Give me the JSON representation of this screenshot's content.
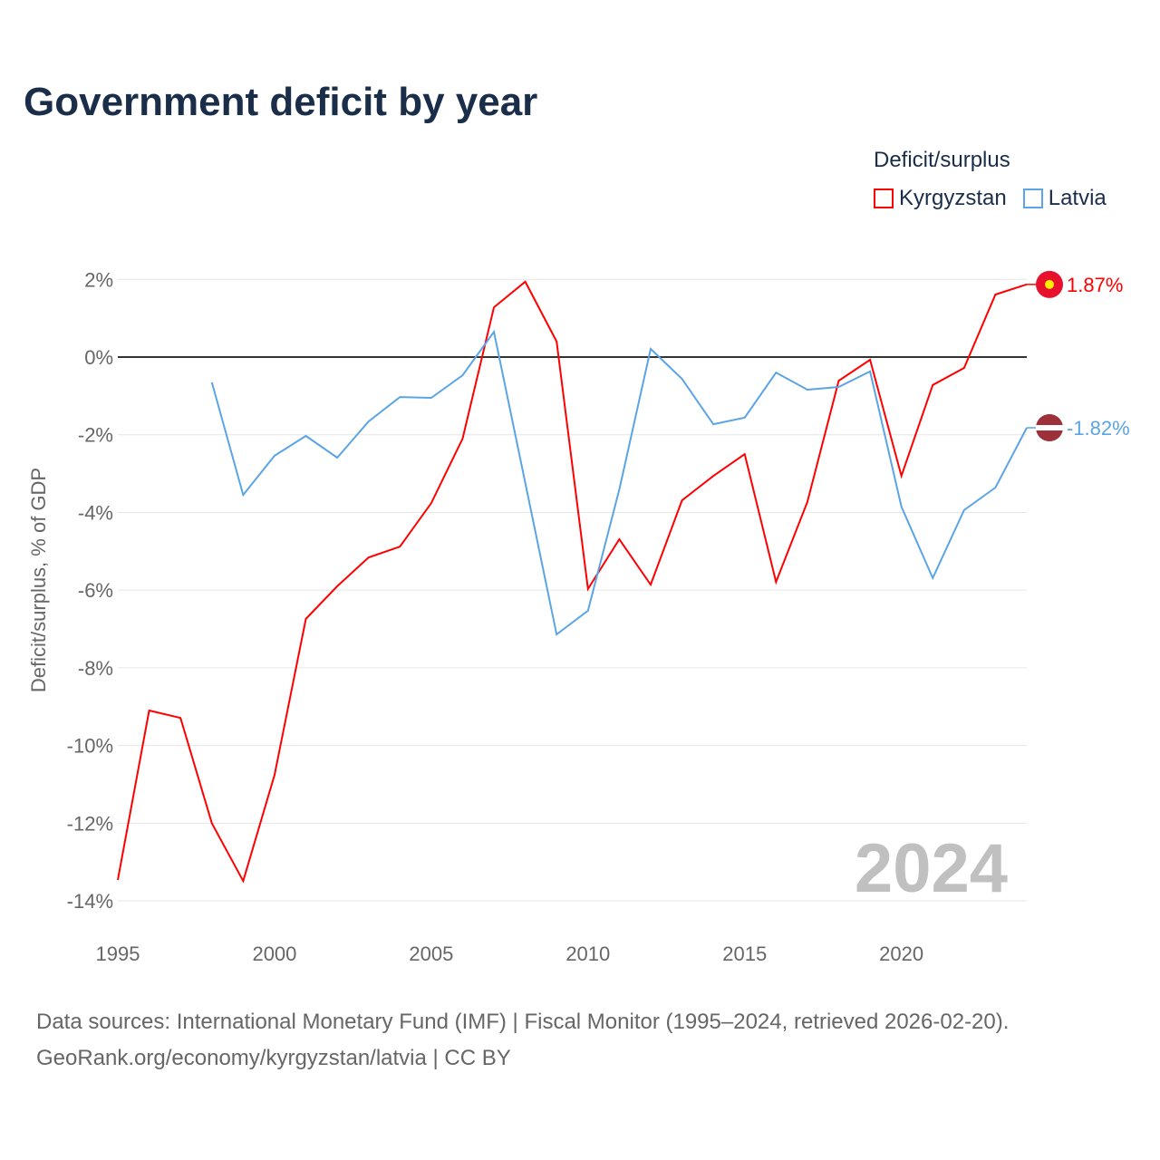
{
  "title": "Government deficit by year",
  "legend": {
    "title": "Deficit/surplus",
    "items": [
      {
        "label": "Kyrgyzstan",
        "color": "#ff0000"
      },
      {
        "label": "Latvia",
        "color": "#5ba4e6"
      }
    ]
  },
  "footer": {
    "line1": "Data sources: International Monetary Fund (IMF) | Fiscal Monitor (1995–2024, retrieved 2026-02-20).",
    "line2": "GeoRank.org/economy/kyrgyzstan/latvia | CC BY"
  },
  "chart_data": {
    "type": "line",
    "title": "Government deficit by year",
    "xlabel": "",
    "ylabel": "Deficit/surplus, % of GDP",
    "xlim": [
      1995,
      2024
    ],
    "ylim": [
      -14,
      2
    ],
    "yticks": [
      2,
      0,
      -2,
      -4,
      -6,
      -8,
      -10,
      -12,
      -14
    ],
    "ytick_labels": [
      "2%",
      "0%",
      "-2%",
      "-4%",
      "-6%",
      "-8%",
      "-10%",
      "-12%",
      "-14%"
    ],
    "xticks": [
      1995,
      2000,
      2005,
      2010,
      2015,
      2020
    ],
    "xtick_labels": [
      "1995",
      "2000",
      "2005",
      "2010",
      "2015",
      "2020"
    ],
    "watermark_year": "2024",
    "series": [
      {
        "name": "Kyrgyzstan",
        "color": "#ff0000",
        "end_label": "1.87%",
        "x": [
          1995,
          1996,
          1997,
          1998,
          1999,
          2000,
          2001,
          2002,
          2003,
          2004,
          2005,
          2006,
          2007,
          2008,
          2009,
          2010,
          2011,
          2012,
          2013,
          2014,
          2015,
          2016,
          2017,
          2018,
          2019,
          2020,
          2021,
          2022,
          2023,
          2024
        ],
        "values": [
          -13.46,
          -9.1,
          -9.29,
          -12.0,
          -13.49,
          -10.76,
          -6.74,
          -5.9,
          -5.16,
          -4.88,
          -3.76,
          -2.1,
          1.28,
          1.94,
          0.4,
          -5.97,
          -4.69,
          -5.86,
          -3.69,
          -3.06,
          -2.5,
          -5.79,
          -3.73,
          -0.61,
          -0.07,
          -3.06,
          -0.72,
          -0.28,
          1.61,
          1.87
        ]
      },
      {
        "name": "Latvia",
        "color": "#5ba4e6",
        "end_label": "-1.82%",
        "x": [
          1998,
          1999,
          2000,
          2001,
          2002,
          2003,
          2004,
          2005,
          2006,
          2007,
          2008,
          2009,
          2010,
          2011,
          2012,
          2013,
          2014,
          2015,
          2016,
          2017,
          2018,
          2019,
          2020,
          2021,
          2022,
          2023,
          2024
        ],
        "values": [
          -0.65,
          -3.55,
          -2.54,
          -2.03,
          -2.59,
          -1.66,
          -1.03,
          -1.05,
          -0.47,
          0.65,
          -3.24,
          -7.14,
          -6.53,
          -3.41,
          0.21,
          -0.56,
          -1.73,
          -1.56,
          -0.4,
          -0.84,
          -0.77,
          -0.37,
          -3.85,
          -5.69,
          -3.94,
          -3.36,
          -1.82
        ]
      }
    ]
  }
}
